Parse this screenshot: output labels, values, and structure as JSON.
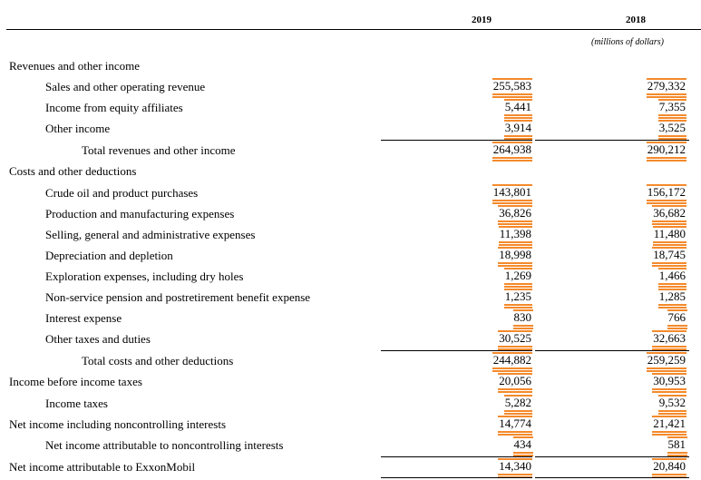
{
  "header": {
    "year1": "2019",
    "year2": "2018",
    "unit": "(millions of dollars)"
  },
  "rows": [
    {
      "label": "Revenues and other income",
      "indent": 0,
      "v2019": "",
      "v2018": ""
    },
    {
      "label": "Sales and other operating revenue",
      "indent": 1,
      "v2019": "255,583",
      "v2018": "279,332"
    },
    {
      "label": "Income from equity affiliates",
      "indent": 1,
      "v2019": "5,441",
      "v2018": "7,355"
    },
    {
      "label": "Other income",
      "indent": 1,
      "v2019": "3,914",
      "v2018": "3,525"
    },
    {
      "label": "Total revenues and other income",
      "indent": 2,
      "v2019": "264,938",
      "v2018": "290,212"
    },
    {
      "label": "Costs and other deductions",
      "indent": 0,
      "v2019": "",
      "v2018": ""
    },
    {
      "label": "Crude oil and product purchases",
      "indent": 1,
      "v2019": "143,801",
      "v2018": "156,172"
    },
    {
      "label": "Production and manufacturing expenses",
      "indent": 1,
      "v2019": "36,826",
      "v2018": "36,682"
    },
    {
      "label": "Selling, general and administrative expenses",
      "indent": 1,
      "v2019": "11,398",
      "v2018": "11,480"
    },
    {
      "label": "Depreciation and depletion",
      "indent": 1,
      "v2019": "18,998",
      "v2018": "18,745"
    },
    {
      "label": "Exploration expenses, including dry holes",
      "indent": 1,
      "v2019": "1,269",
      "v2018": "1,466"
    },
    {
      "label": "Non-service pension and postretirement benefit expense",
      "indent": 1,
      "v2019": "1,235",
      "v2018": "1,285"
    },
    {
      "label": "Interest expense",
      "indent": 1,
      "v2019": "830",
      "v2018": "766"
    },
    {
      "label": "Other taxes and duties",
      "indent": 1,
      "v2019": "30,525",
      "v2018": "32,663"
    },
    {
      "label": "Total costs and other deductions",
      "indent": 2,
      "v2019": "244,882",
      "v2018": "259,259"
    },
    {
      "label": "Income before income taxes",
      "indent": 0,
      "v2019": "20,056",
      "v2018": "30,953"
    },
    {
      "label": "Income taxes",
      "indent": 1,
      "v2019": "5,282",
      "v2018": "9,532"
    },
    {
      "label": "Net income including noncontrolling interests",
      "indent": 0,
      "v2019": "14,774",
      "v2018": "21,421"
    },
    {
      "label": "Net income attributable to noncontrolling interests",
      "indent": 1,
      "v2019": "434",
      "v2018": "581"
    },
    {
      "label": "Net income attributable to ExxonMobil",
      "indent": 0,
      "v2019": "14,340",
      "v2018": "20,840"
    }
  ]
}
